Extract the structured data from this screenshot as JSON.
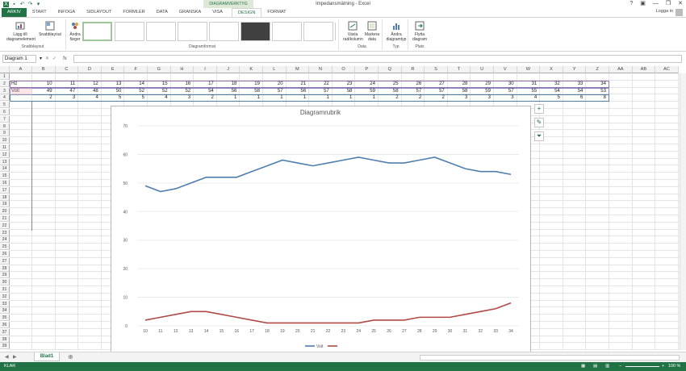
{
  "window": {
    "title": "Impedansmätning - Excel",
    "context_tab": "DIAGRAMVERKTYG",
    "user": "Logga in",
    "controls": [
      "?",
      "▣",
      "—",
      "❐",
      "✕"
    ]
  },
  "tabs": [
    "ARKIV",
    "START",
    "INFOGA",
    "SIDLAYOUT",
    "FORMLER",
    "DATA",
    "GRANSKA",
    "VISA",
    "DESIGN",
    "FORMAT"
  ],
  "active_tab": "DESIGN",
  "ribbon": {
    "groups": {
      "layout": "Snabblayout",
      "styles": "Diagramformat",
      "data": "Data",
      "type": "Typ",
      "location": "Plats"
    },
    "buttons": {
      "add_element": "Lägg till diagramelement",
      "quick_layout": "Snabblayout",
      "change_colors": "Ändra färger",
      "switch_rowcol": "Växla rad/kolumn",
      "select_data": "Markera data",
      "change_type": "Ändra diagramtyp",
      "move_chart": "Flytta diagram"
    }
  },
  "formula_bar": {
    "name_box": "Diagram 1",
    "fx": "fx",
    "value": ""
  },
  "columns": [
    "A",
    "B",
    "C",
    "D",
    "E",
    "F",
    "G",
    "H",
    "I",
    "J",
    "K",
    "L",
    "M",
    "N",
    "O",
    "P",
    "Q",
    "R",
    "S",
    "T",
    "U",
    "V",
    "W",
    "X",
    "Y",
    "Z",
    "AA",
    "AB",
    "AC"
  ],
  "sheet": {
    "row_labels": [
      "Hz",
      "Volt",
      ""
    ],
    "hz": [
      10,
      11,
      12,
      13,
      14,
      15,
      16,
      17,
      18,
      19,
      20,
      21,
      22,
      23,
      24,
      25,
      26,
      27,
      28,
      29,
      30,
      31,
      32,
      33,
      34
    ],
    "volt": [
      49,
      47,
      48,
      50,
      52,
      52,
      52,
      54,
      56,
      58,
      57,
      56,
      57,
      58,
      59,
      58,
      57,
      57,
      58,
      59,
      57,
      55,
      54,
      54,
      53
    ],
    "row4": [
      2,
      3,
      4,
      5,
      5,
      4,
      3,
      2,
      1,
      1,
      1,
      1,
      1,
      1,
      1,
      2,
      2,
      2,
      3,
      3,
      3,
      4,
      5,
      6,
      8
    ]
  },
  "chart_data": {
    "type": "line",
    "title": "Diagramrubrik",
    "x": [
      10,
      11,
      12,
      13,
      14,
      15,
      16,
      17,
      18,
      19,
      20,
      21,
      22,
      23,
      24,
      25,
      26,
      27,
      28,
      29,
      30,
      31,
      32,
      33,
      34
    ],
    "series": [
      {
        "name": "Volt",
        "color": "#4f7fae",
        "values": [
          49,
          47,
          48,
          50,
          52,
          52,
          52,
          54,
          56,
          58,
          57,
          56,
          57,
          58,
          59,
          58,
          57,
          57,
          58,
          59,
          57,
          55,
          54,
          54,
          53
        ]
      },
      {
        "color": "#b04a46",
        "values": [
          2,
          3,
          4,
          5,
          5,
          4,
          3,
          2,
          1,
          1,
          1,
          1,
          1,
          1,
          1,
          2,
          2,
          2,
          3,
          3,
          3,
          4,
          5,
          6,
          8
        ]
      }
    ],
    "ylim": [
      0,
      70
    ],
    "yticks": [
      0,
      10,
      20,
      30,
      40,
      50,
      60,
      70
    ],
    "grid": true,
    "legend": "bottom"
  },
  "chart_tools": [
    "+",
    "✎",
    "⏷"
  ],
  "sheet_tabs": [
    "Blad1"
  ],
  "status": {
    "mode": "KLAR",
    "zoom": "100 %"
  },
  "colors": {
    "accent": "#217346"
  }
}
